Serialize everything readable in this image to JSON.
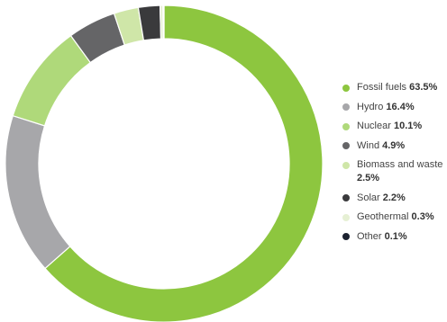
{
  "chart_data": {
    "type": "pie",
    "variant": "donut",
    "title": "",
    "legend_position": "right",
    "slices": [
      {
        "label": "Fossil fuels",
        "value": 63.5,
        "display_value": "63.5%",
        "color": "#8dc63f"
      },
      {
        "label": "Hydro",
        "value": 16.4,
        "display_value": "16.4%",
        "color": "#a7a7aa"
      },
      {
        "label": "Nuclear",
        "value": 10.1,
        "display_value": "10.1%",
        "color": "#afd97a"
      },
      {
        "label": "Wind",
        "value": 4.9,
        "display_value": "4.9%",
        "color": "#656567"
      },
      {
        "label": "Biomass and waste",
        "value": 2.5,
        "display_value": "2.5%",
        "color": "#cfe6a8"
      },
      {
        "label": "Solar",
        "value": 2.2,
        "display_value": "2.2%",
        "color": "#3a3a3c"
      },
      {
        "label": "Geothermal",
        "value": 0.3,
        "display_value": "0.3%",
        "color": "#e6f0d4"
      },
      {
        "label": "Other",
        "value": 0.1,
        "display_value": "0.1%",
        "color": "#1c2230"
      }
    ]
  }
}
